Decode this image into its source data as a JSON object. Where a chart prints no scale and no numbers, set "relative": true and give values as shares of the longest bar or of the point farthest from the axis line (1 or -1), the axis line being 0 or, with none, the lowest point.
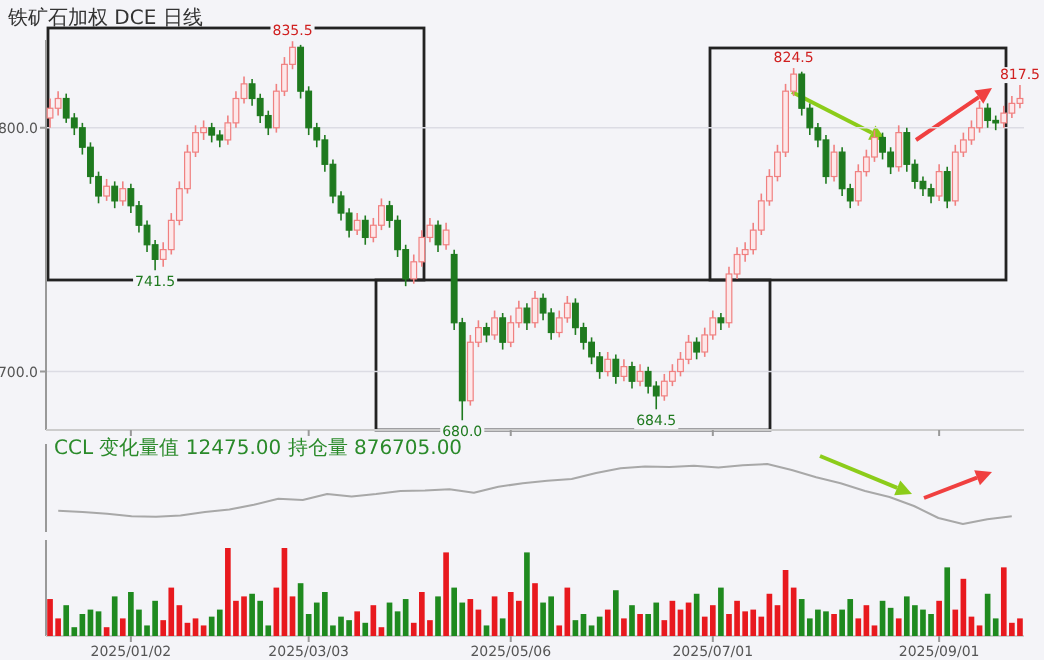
{
  "chart_data": [
    {
      "type": "candlestick",
      "title": "铁矿石加权 DCE 日线",
      "tick_labels": "y",
      "grid": "y",
      "ylim": [
        676,
        836
      ],
      "yticks": [
        {
          "value": 700,
          "label": "700.0"
        },
        {
          "value": 800,
          "label": "800.0"
        }
      ],
      "categories": [
        null,
        null,
        null,
        null,
        null,
        null,
        null,
        null,
        null,
        null,
        "2025/01/02",
        null,
        null,
        null,
        null,
        null,
        null,
        null,
        null,
        null,
        null,
        null,
        null,
        null,
        null,
        null,
        null,
        null,
        null,
        null,
        null,
        null,
        "2025/03/03",
        null,
        null,
        null,
        null,
        null,
        null,
        null,
        null,
        null,
        null,
        null,
        null,
        null,
        null,
        null,
        null,
        null,
        null,
        null,
        null,
        null,
        null,
        null,
        null,
        "2025/05/06",
        null,
        null,
        null,
        null,
        null,
        null,
        null,
        null,
        null,
        null,
        null,
        null,
        null,
        null,
        null,
        null,
        null,
        null,
        null,
        null,
        null,
        null,
        null,
        null,
        "2025/07/01",
        null,
        null,
        null,
        null,
        null,
        null,
        null,
        null,
        null,
        null,
        null,
        null,
        null,
        null,
        null,
        null,
        null,
        null,
        null,
        null,
        null,
        null,
        null,
        null,
        null,
        null,
        null,
        "2025/09/01",
        null,
        null,
        null,
        null,
        null,
        null,
        null,
        null,
        null,
        null
      ],
      "ohlc": [
        [
          804,
          812,
          800,
          808
        ],
        [
          808,
          815,
          805,
          812
        ],
        [
          812,
          814,
          802,
          804
        ],
        [
          804,
          806,
          797,
          800
        ],
        [
          800,
          802,
          789,
          792
        ],
        [
          792,
          794,
          777,
          780
        ],
        [
          780,
          782,
          769,
          772
        ],
        [
          772,
          779,
          770,
          776
        ],
        [
          776,
          778,
          767,
          770
        ],
        [
          770,
          778,
          768,
          775
        ],
        [
          775,
          777,
          765,
          768
        ],
        [
          768,
          770,
          757,
          760
        ],
        [
          760,
          762,
          749,
          752
        ],
        [
          752,
          754,
          741.5,
          746
        ],
        [
          746,
          753,
          743,
          750
        ],
        [
          750,
          765,
          748,
          762
        ],
        [
          762,
          778,
          760,
          775
        ],
        [
          775,
          793,
          773,
          790
        ],
        [
          790,
          801,
          788,
          798
        ],
        [
          798,
          803,
          795,
          800
        ],
        [
          800,
          802,
          794,
          797
        ],
        [
          797,
          799,
          792,
          795
        ],
        [
          795,
          805,
          793,
          802
        ],
        [
          802,
          815,
          800,
          812
        ],
        [
          812,
          821,
          810,
          818
        ],
        [
          818,
          820,
          809,
          812
        ],
        [
          812,
          814,
          802,
          805
        ],
        [
          805,
          807,
          797,
          800
        ],
        [
          800,
          818,
          798,
          815
        ],
        [
          815,
          829,
          813,
          826
        ],
        [
          826,
          835.5,
          824,
          833
        ],
        [
          833,
          834,
          812,
          815
        ],
        [
          815,
          817,
          797,
          800
        ],
        [
          800,
          802,
          792,
          795
        ],
        [
          795,
          797,
          782,
          785
        ],
        [
          785,
          787,
          769,
          772
        ],
        [
          772,
          774,
          762,
          765
        ],
        [
          765,
          767,
          755,
          758
        ],
        [
          758,
          765,
          756,
          762
        ],
        [
          762,
          764,
          752,
          755
        ],
        [
          755,
          763,
          753,
          760
        ],
        [
          760,
          771,
          758,
          768
        ],
        [
          768,
          770,
          759,
          762
        ],
        [
          762,
          764,
          747,
          750
        ],
        [
          750,
          752,
          735,
          738
        ],
        [
          738,
          748,
          736,
          745
        ],
        [
          745,
          758,
          743,
          755
        ],
        [
          755,
          763,
          753,
          760
        ],
        [
          760,
          762,
          749,
          752
        ],
        [
          752,
          761,
          750,
          758
        ],
        [
          748,
          750,
          717,
          720
        ],
        [
          720,
          722,
          680,
          688
        ],
        [
          688,
          715,
          686,
          712
        ],
        [
          712,
          721,
          710,
          718
        ],
        [
          718,
          720,
          712,
          715
        ],
        [
          715,
          725,
          713,
          722
        ],
        [
          722,
          724,
          709,
          712
        ],
        [
          712,
          723,
          710,
          720
        ],
        [
          720,
          729,
          718,
          726
        ],
        [
          726,
          728,
          717,
          720
        ],
        [
          720,
          733,
          718,
          730
        ],
        [
          730,
          732,
          721,
          724
        ],
        [
          724,
          726,
          713,
          716
        ],
        [
          716,
          725,
          714,
          722
        ],
        [
          722,
          731,
          720,
          728
        ],
        [
          728,
          730,
          715,
          718
        ],
        [
          718,
          720,
          709,
          712
        ],
        [
          712,
          714,
          703,
          706
        ],
        [
          706,
          708,
          697,
          700
        ],
        [
          700,
          708,
          698,
          705
        ],
        [
          705,
          707,
          695,
          698
        ],
        [
          698,
          705,
          696,
          702
        ],
        [
          702,
          704,
          693,
          696
        ],
        [
          696,
          703,
          694,
          700
        ],
        [
          700,
          702,
          691,
          694
        ],
        [
          694,
          696,
          684.5,
          690
        ],
        [
          690,
          699,
          688,
          696
        ],
        [
          696,
          703,
          694,
          700
        ],
        [
          700,
          708,
          698,
          705
        ],
        [
          705,
          715,
          703,
          712
        ],
        [
          712,
          714,
          705,
          708
        ],
        [
          708,
          718,
          706,
          715
        ],
        [
          715,
          725,
          713,
          722
        ],
        [
          722,
          724,
          717,
          720
        ],
        [
          720,
          743,
          718,
          740
        ],
        [
          740,
          751,
          738,
          748
        ],
        [
          748,
          753,
          745,
          750
        ],
        [
          750,
          761,
          748,
          758
        ],
        [
          758,
          773,
          756,
          770
        ],
        [
          770,
          783,
          768,
          780
        ],
        [
          780,
          793,
          778,
          790
        ],
        [
          790,
          818,
          788,
          815
        ],
        [
          815,
          824.5,
          813,
          822
        ],
        [
          822,
          823,
          805,
          808
        ],
        [
          808,
          810,
          797,
          800
        ],
        [
          800,
          802,
          792,
          795
        ],
        [
          795,
          797,
          777,
          780
        ],
        [
          780,
          793,
          778,
          790
        ],
        [
          790,
          792,
          772,
          775
        ],
        [
          775,
          777,
          767,
          770
        ],
        [
          770,
          785,
          768,
          782
        ],
        [
          782,
          791,
          780,
          788
        ],
        [
          788,
          799,
          786,
          796
        ],
        [
          796,
          798,
          787,
          790
        ],
        [
          790,
          792,
          781,
          784
        ],
        [
          784,
          801,
          782,
          798
        ],
        [
          798,
          800,
          782,
          785
        ],
        [
          785,
          787,
          775,
          778
        ],
        [
          778,
          780,
          772,
          775
        ],
        [
          775,
          777,
          769,
          772
        ],
        [
          772,
          785,
          770,
          782
        ],
        [
          782,
          784,
          767,
          770
        ],
        [
          770,
          793,
          768,
          790
        ],
        [
          790,
          798,
          788,
          795
        ],
        [
          795,
          803,
          793,
          800
        ],
        [
          800,
          811,
          798,
          808
        ],
        [
          808,
          810,
          800,
          803
        ],
        [
          803,
          805,
          799,
          802
        ],
        [
          802,
          809,
          800,
          806
        ],
        [
          806,
          813,
          804,
          810
        ],
        [
          810,
          817.5,
          808,
          812
        ]
      ],
      "annotations": [
        {
          "text": "835.5",
          "y": 835.5
        },
        {
          "text": "741.5",
          "y": 741.5
        },
        {
          "text": "680.0",
          "y": 680
        },
        {
          "text": "684.5",
          "y": 684.5
        },
        {
          "text": "824.5",
          "y": 824.5
        },
        {
          "text": "817.5",
          "y": 817.5
        }
      ]
    },
    {
      "type": "line",
      "relative": true,
      "color": "#a8a8a8",
      "categories": [
        null,
        null,
        null,
        null,
        null,
        null,
        null,
        null,
        null,
        null,
        null,
        null,
        null,
        null,
        null,
        null,
        null,
        null,
        null,
        null,
        null,
        null,
        null,
        null,
        null,
        null,
        null,
        null,
        null,
        null,
        null,
        null,
        null,
        null,
        null,
        null,
        null,
        null,
        null,
        null
      ],
      "values": [
        0.22,
        0.2,
        0.17,
        0.13,
        0.12,
        0.14,
        0.2,
        0.24,
        0.32,
        0.42,
        0.4,
        0.5,
        0.46,
        0.5,
        0.55,
        0.56,
        0.58,
        0.52,
        0.62,
        0.68,
        0.72,
        0.75,
        0.85,
        0.93,
        0.96,
        0.95,
        0.97,
        0.94,
        0.98,
        1,
        0.9,
        0.78,
        0.68,
        0.55,
        0.45,
        0.3,
        0.1,
        0,
        0.08,
        0.13
      ],
      "annotations": [
        "CCL 变化量值 12475.00 持仓量 876705.00"
      ]
    },
    {
      "type": "bar",
      "relative": true,
      "tick_labels": "x",
      "categories": [
        null,
        null,
        null,
        null,
        null,
        null,
        null,
        null,
        null,
        null,
        "2025/01/02",
        null,
        null,
        null,
        null,
        null,
        null,
        null,
        null,
        null,
        null,
        null,
        null,
        null,
        null,
        null,
        null,
        null,
        null,
        null,
        null,
        null,
        "2025/03/03",
        null,
        null,
        null,
        null,
        null,
        null,
        null,
        null,
        null,
        null,
        null,
        null,
        null,
        null,
        null,
        null,
        null,
        null,
        null,
        null,
        null,
        null,
        null,
        null,
        "2025/05/06",
        null,
        null,
        null,
        null,
        null,
        null,
        null,
        null,
        null,
        null,
        null,
        null,
        null,
        null,
        null,
        null,
        null,
        null,
        null,
        null,
        null,
        null,
        null,
        null,
        "2025/07/01",
        null,
        null,
        null,
        null,
        null,
        null,
        null,
        null,
        null,
        null,
        null,
        null,
        null,
        null,
        null,
        null,
        null,
        null,
        null,
        null,
        null,
        null,
        null,
        null,
        null,
        null,
        null,
        "2025/09/01",
        null,
        null,
        null,
        null,
        null,
        null,
        null,
        null,
        null,
        null
      ],
      "values": [
        0.42,
        0.2,
        0.35,
        0.1,
        0.25,
        0.3,
        0.28,
        0.1,
        0.45,
        0.2,
        0.5,
        0.3,
        0.12,
        0.4,
        0.18,
        0.55,
        0.35,
        0.15,
        0.2,
        0.12,
        0.22,
        0.3,
        1,
        0.4,
        0.45,
        0.48,
        0.4,
        0.12,
        0.55,
        1,
        0.45,
        0.6,
        0.25,
        0.38,
        0.5,
        0.12,
        0.22,
        0.18,
        0.28,
        0.15,
        0.35,
        0.1,
        0.38,
        0.28,
        0.42,
        0.15,
        0.5,
        0.18,
        0.45,
        0.95,
        0.55,
        0.38,
        0.42,
        0.3,
        0.12,
        0.45,
        0.2,
        0.5,
        0.4,
        0.95,
        0.6,
        0.38,
        0.45,
        0.12,
        0.55,
        0.18,
        0.25,
        0.12,
        0.22,
        0.3,
        0.52,
        0.2,
        0.35,
        0.25,
        0.25,
        0.38,
        0.18,
        0.4,
        0.3,
        0.38,
        0.48,
        0.22,
        0.35,
        0.55,
        0.25,
        0.4,
        0.28,
        0.3,
        0.22,
        0.48,
        0.35,
        0.75,
        0.55,
        0.42,
        0.2,
        0.3,
        0.28,
        0.25,
        0.3,
        0.42,
        0.2,
        0.35,
        0.12,
        0.4,
        0.32,
        0.2,
        0.45,
        0.35,
        0.3,
        0.25,
        0.4,
        0.78,
        0.3,
        0.65,
        0.22,
        0.12,
        0.48,
        0.2,
        0.78,
        0.15,
        0.2
      ],
      "colors": [
        "#e8191e",
        "#e8191e",
        "#1f8a1f",
        "#1f8a1f",
        "#1f8a1f",
        "#1f8a1f",
        "#1f8a1f",
        "#e8191e",
        "#1f8a1f",
        "#e8191e",
        "#1f8a1f",
        "#1f8a1f",
        "#1f8a1f",
        "#1f8a1f",
        "#e8191e",
        "#e8191e",
        "#e8191e",
        "#e8191e",
        "#e8191e",
        "#e8191e",
        "#1f8a1f",
        "#1f8a1f",
        "#e8191e",
        "#e8191e",
        "#e8191e",
        "#1f8a1f",
        "#1f8a1f",
        "#1f8a1f",
        "#e8191e",
        "#e8191e",
        "#e8191e",
        "#1f8a1f",
        "#1f8a1f",
        "#1f8a1f",
        "#1f8a1f",
        "#1f8a1f",
        "#1f8a1f",
        "#1f8a1f",
        "#e8191e",
        "#1f8a1f",
        "#e8191e",
        "#e8191e",
        "#1f8a1f",
        "#1f8a1f",
        "#1f8a1f",
        "#e8191e",
        "#e8191e",
        "#e8191e",
        "#1f8a1f",
        "#e8191e",
        "#1f8a1f",
        "#1f8a1f",
        "#e8191e",
        "#e8191e",
        "#1f8a1f",
        "#e8191e",
        "#1f8a1f",
        "#e8191e",
        "#e8191e",
        "#1f8a1f",
        "#e8191e",
        "#1f8a1f",
        "#1f8a1f",
        "#e8191e",
        "#e8191e",
        "#1f8a1f",
        "#1f8a1f",
        "#1f8a1f",
        "#1f8a1f",
        "#e8191e",
        "#1f8a1f",
        "#e8191e",
        "#1f8a1f",
        "#e8191e",
        "#1f8a1f",
        "#1f8a1f",
        "#e8191e",
        "#e8191e",
        "#e8191e",
        "#e8191e",
        "#1f8a1f",
        "#e8191e",
        "#e8191e",
        "#1f8a1f",
        "#e8191e",
        "#e8191e",
        "#e8191e",
        "#e8191e",
        "#e8191e",
        "#e8191e",
        "#e8191e",
        "#e8191e",
        "#e8191e",
        "#1f8a1f",
        "#1f8a1f",
        "#1f8a1f",
        "#1f8a1f",
        "#e8191e",
        "#1f8a1f",
        "#1f8a1f",
        "#e8191e",
        "#e8191e",
        "#e8191e",
        "#1f8a1f",
        "#1f8a1f",
        "#e8191e",
        "#1f8a1f",
        "#1f8a1f",
        "#1f8a1f",
        "#1f8a1f",
        "#e8191e",
        "#1f8a1f",
        "#e8191e",
        "#e8191e",
        "#e8191e",
        "#e8191e",
        "#1f8a1f",
        "#1f8a1f",
        "#e8191e",
        "#e8191e",
        "#e8191e"
      ]
    }
  ]
}
